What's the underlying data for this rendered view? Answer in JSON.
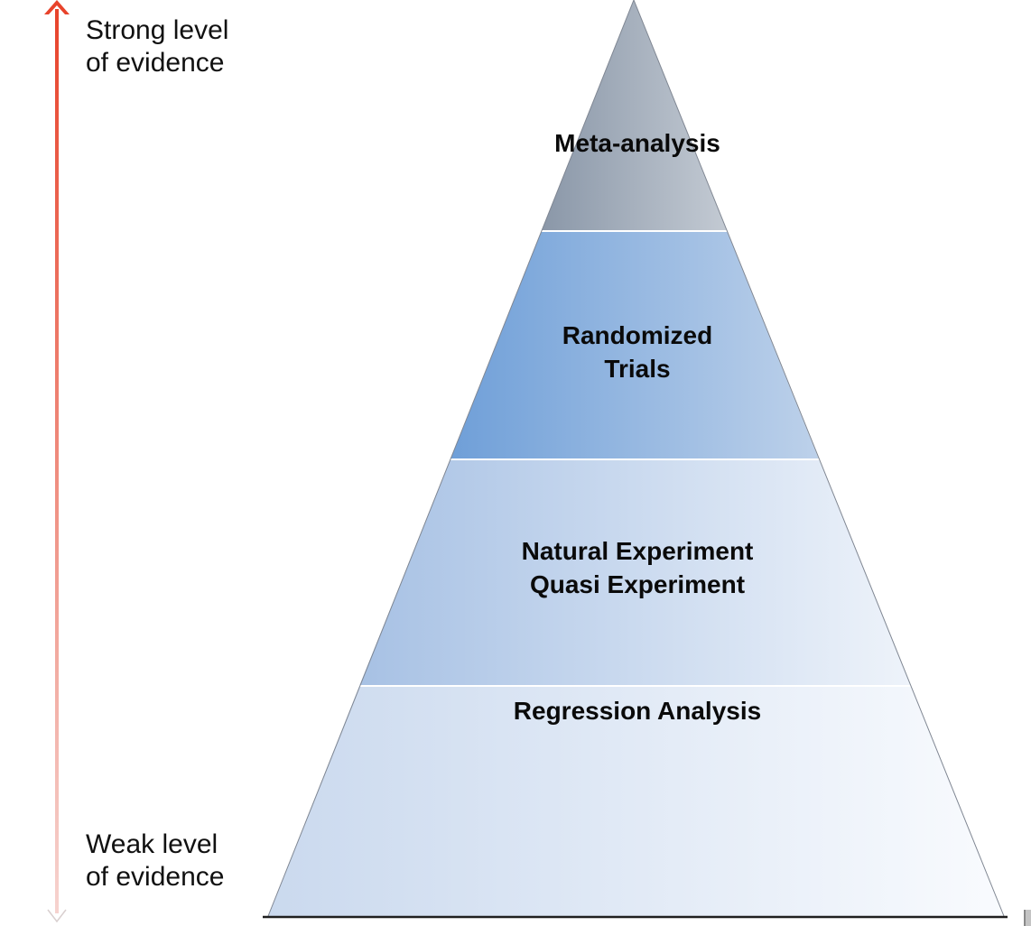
{
  "evidence_axis": {
    "strong_label": [
      "Strong level",
      "of evidence"
    ],
    "weak_label": [
      "Weak level",
      "of evidence"
    ],
    "arrow_color_top": "#e8432b",
    "arrow_color_bottom": "#f6d3cf"
  },
  "pyramid": {
    "tiers": [
      {
        "lines": [
          "Meta-analysis"
        ],
        "color_dark": "#8a97a8",
        "color_light": "#c3cad3"
      },
      {
        "lines": [
          "Randomized",
          "Trials"
        ],
        "color_dark": "#6f9fd8",
        "color_light": "#bdd1ea"
      },
      {
        "lines": [
          "Natural Experiment",
          "Quasi Experiment"
        ],
        "color_dark": "#a7c1e4",
        "color_light": "#eef3fa"
      },
      {
        "lines": [
          "Regression Analysis"
        ],
        "color_dark": "#cad9ee",
        "color_light": "#f9fbfe"
      }
    ]
  }
}
